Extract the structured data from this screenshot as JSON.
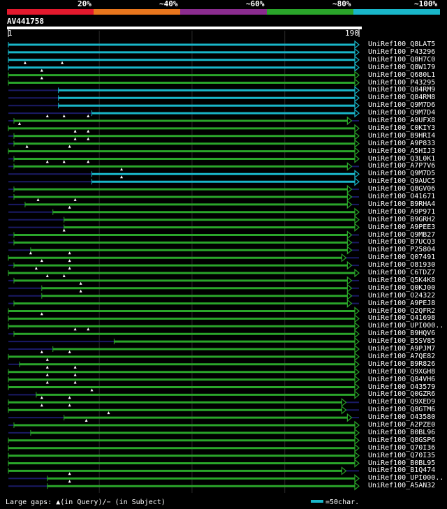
{
  "legend": {
    "segments": [
      {
        "label": "20%",
        "color": "#e3192d"
      },
      {
        "label": "~40%",
        "color": "#e8761d"
      },
      {
        "label": "~60%",
        "color": "#8b2c8f"
      },
      {
        "label": "~80%",
        "color": "#2aa52a"
      },
      {
        "label": "~100%",
        "color": "#19b6c9"
      }
    ]
  },
  "query": {
    "id": "AV441758",
    "start_label": "1",
    "end_label": "190",
    "length": 190
  },
  "colors": {
    "cyan": "#19b6c9",
    "green": "#2aa52a",
    "dark": "#1a1a66"
  },
  "footer": {
    "gaps_text": "Large gaps: ▲(in Query)/− (in Subject)",
    "scale_text": "=50char."
  },
  "hits": [
    {
      "label": "UniRef100_Q8LAT5",
      "color": "cyan",
      "start": 1,
      "end": 190,
      "gaps": []
    },
    {
      "label": "UniRef100_P43296",
      "color": "cyan",
      "start": 1,
      "end": 190,
      "gaps": []
    },
    {
      "label": "UniRef100_Q8H7C0",
      "color": "cyan",
      "start": 1,
      "end": 190,
      "gaps": []
    },
    {
      "label": "UniRef100_Q8W179",
      "color": "cyan",
      "start": 1,
      "end": 190,
      "gaps": [
        10,
        30
      ]
    },
    {
      "label": "UniRef100_Q680L1",
      "color": "green",
      "start": 1,
      "end": 190,
      "gaps": [
        19
      ]
    },
    {
      "label": "UniRef100_P43295",
      "color": "green",
      "start": 1,
      "end": 190,
      "gaps": [
        19
      ]
    },
    {
      "label": "UniRef100_Q84RM9",
      "color": "cyan",
      "start": 28,
      "end": 190,
      "gaps": []
    },
    {
      "label": "UniRef100_Q84RM8",
      "color": "cyan",
      "start": 28,
      "end": 190,
      "gaps": []
    },
    {
      "label": "UniRef100_Q9M7D6",
      "color": "cyan",
      "start": 28,
      "end": 190,
      "gaps": []
    },
    {
      "label": "UniRef100_Q9M7D4",
      "color": "cyan",
      "start": 46,
      "end": 190,
      "gaps": []
    },
    {
      "label": "UniRef100_A9UFX8",
      "color": "green",
      "start": 4,
      "end": 186,
      "gaps": [
        22,
        31,
        44
      ]
    },
    {
      "label": "UniRef100_C0KIY3",
      "color": "green",
      "start": 1,
      "end": 190,
      "gaps": [
        7
      ]
    },
    {
      "label": "UniRef100_B9HRI4",
      "color": "green",
      "start": 4,
      "end": 190,
      "gaps": [
        37,
        44
      ]
    },
    {
      "label": "UniRef100_A9P833",
      "color": "green",
      "start": 4,
      "end": 190,
      "gaps": [
        37,
        44
      ]
    },
    {
      "label": "UniRef100_A5HIJ3",
      "color": "green",
      "start": 1,
      "end": 190,
      "gaps": [
        11,
        34
      ]
    },
    {
      "label": "UniRef100_Q3L0K1",
      "color": "green",
      "start": 4,
      "end": 190,
      "gaps": []
    },
    {
      "label": "UniRef100_A7P7V6",
      "color": "green",
      "start": 4,
      "end": 186,
      "gaps": [
        22,
        31,
        44
      ]
    },
    {
      "label": "UniRef100_Q9M7D5",
      "color": "cyan",
      "start": 46,
      "end": 190,
      "gaps": [
        62
      ]
    },
    {
      "label": "UniRef100_Q9AUC5",
      "color": "cyan",
      "start": 46,
      "end": 190,
      "gaps": [
        62
      ]
    },
    {
      "label": "UniRef100_Q8GV06",
      "color": "green",
      "start": 4,
      "end": 186,
      "gaps": []
    },
    {
      "label": "UniRef100_O41671",
      "color": "green",
      "start": 4,
      "end": 186,
      "gaps": []
    },
    {
      "label": "UniRef100_B9RHA4",
      "color": "green",
      "start": 10,
      "end": 186,
      "gaps": [
        17,
        37
      ]
    },
    {
      "label": "UniRef100_A9P971",
      "color": "green",
      "start": 25,
      "end": 190,
      "gaps": [
        34
      ]
    },
    {
      "label": "UniRef100_B9GRH2",
      "color": "green",
      "start": 31,
      "end": 190,
      "gaps": []
    },
    {
      "label": "UniRef100_A9PEE3",
      "color": "green",
      "start": 31,
      "end": 190,
      "gaps": []
    },
    {
      "label": "UniRef100_Q9MB27",
      "color": "green",
      "start": 4,
      "end": 186,
      "gaps": [
        31
      ]
    },
    {
      "label": "UniRef100_B7UCQ3",
      "color": "green",
      "start": 4,
      "end": 186,
      "gaps": []
    },
    {
      "label": "UniRef100_P25804",
      "color": "green",
      "start": 13,
      "end": 186,
      "gaps": []
    },
    {
      "label": "UniRef100_Q07491",
      "color": "green",
      "start": 1,
      "end": 183,
      "gaps": [
        13,
        34
      ]
    },
    {
      "label": "UniRef100_O81930",
      "color": "green",
      "start": 4,
      "end": 186,
      "gaps": [
        19,
        34
      ]
    },
    {
      "label": "UniRef100_C6TDZ7",
      "color": "green",
      "start": 1,
      "end": 190,
      "gaps": [
        16,
        34
      ]
    },
    {
      "label": "UniRef100_Q5K4K8",
      "color": "green",
      "start": 4,
      "end": 186,
      "gaps": [
        22,
        31
      ]
    },
    {
      "label": "UniRef100_Q0KJ00",
      "color": "green",
      "start": 19,
      "end": 186,
      "gaps": [
        40
      ]
    },
    {
      "label": "UniRef100_O24322",
      "color": "green",
      "start": 19,
      "end": 186,
      "gaps": [
        40
      ]
    },
    {
      "label": "UniRef100_A9PEJ8",
      "color": "green",
      "start": 4,
      "end": 186,
      "gaps": []
    },
    {
      "label": "UniRef100_Q2QFR2",
      "color": "green",
      "start": 1,
      "end": 190,
      "gaps": []
    },
    {
      "label": "UniRef100_Q41698",
      "color": "green",
      "start": 1,
      "end": 190,
      "gaps": [
        19
      ]
    },
    {
      "label": "UniRef100_UPI000..",
      "color": "green",
      "start": 1,
      "end": 190,
      "gaps": []
    },
    {
      "label": "UniRef100_B9HQV6",
      "color": "green",
      "start": 4,
      "end": 190,
      "gaps": [
        37,
        44
      ]
    },
    {
      "label": "UniRef100_B5SV85",
      "color": "green",
      "start": 58,
      "end": 190,
      "gaps": []
    },
    {
      "label": "UniRef100_A9PJM7",
      "color": "green",
      "start": 25,
      "end": 190,
      "gaps": []
    },
    {
      "label": "UniRef100_A7QE82",
      "color": "green",
      "start": 1,
      "end": 190,
      "gaps": [
        19,
        34
      ]
    },
    {
      "label": "UniRef100_B9R826",
      "color": "green",
      "start": 7,
      "end": 190,
      "gaps": [
        22
      ]
    },
    {
      "label": "UniRef100_Q9XGH8",
      "color": "green",
      "start": 1,
      "end": 190,
      "gaps": [
        22,
        37
      ]
    },
    {
      "label": "UniRef100_Q84VH6",
      "color": "green",
      "start": 1,
      "end": 190,
      "gaps": [
        22,
        37
      ]
    },
    {
      "label": "UniRef100_O43579",
      "color": "green",
      "start": 1,
      "end": 190,
      "gaps": [
        22,
        37
      ]
    },
    {
      "label": "UniRef100_Q0GZR6",
      "color": "green",
      "start": 16,
      "end": 190,
      "gaps": [
        46
      ]
    },
    {
      "label": "UniRef100_Q9XED9",
      "color": "green",
      "start": 1,
      "end": 183,
      "gaps": [
        19,
        34
      ]
    },
    {
      "label": "UniRef100_Q8GTM6",
      "color": "green",
      "start": 1,
      "end": 183,
      "gaps": [
        19,
        34
      ]
    },
    {
      "label": "UniRef100_O43580",
      "color": "green",
      "start": 31,
      "end": 186,
      "gaps": [
        55
      ]
    },
    {
      "label": "UniRef100_A2PZE0",
      "color": "green",
      "start": 4,
      "end": 190,
      "gaps": [
        43
      ]
    },
    {
      "label": "UniRef100_B0BL96",
      "color": "green",
      "start": 13,
      "end": 190,
      "gaps": []
    },
    {
      "label": "UniRef100_Q8GSP6",
      "color": "green",
      "start": 1,
      "end": 190,
      "gaps": []
    },
    {
      "label": "UniRef100_Q70I36",
      "color": "green",
      "start": 1,
      "end": 190,
      "gaps": []
    },
    {
      "label": "UniRef100_Q70I35",
      "color": "green",
      "start": 1,
      "end": 190,
      "gaps": []
    },
    {
      "label": "UniRef100_B0BL95",
      "color": "green",
      "start": 1,
      "end": 190,
      "gaps": []
    },
    {
      "label": "UniRef100_B1Q474",
      "color": "green",
      "start": 1,
      "end": 183,
      "gaps": []
    },
    {
      "label": "UniRef100_UPI000..",
      "color": "green",
      "start": 22,
      "end": 190,
      "gaps": [
        34
      ]
    },
    {
      "label": "UniRef100_A5AN32",
      "color": "green",
      "start": 22,
      "end": 190,
      "gaps": [
        34
      ]
    }
  ]
}
